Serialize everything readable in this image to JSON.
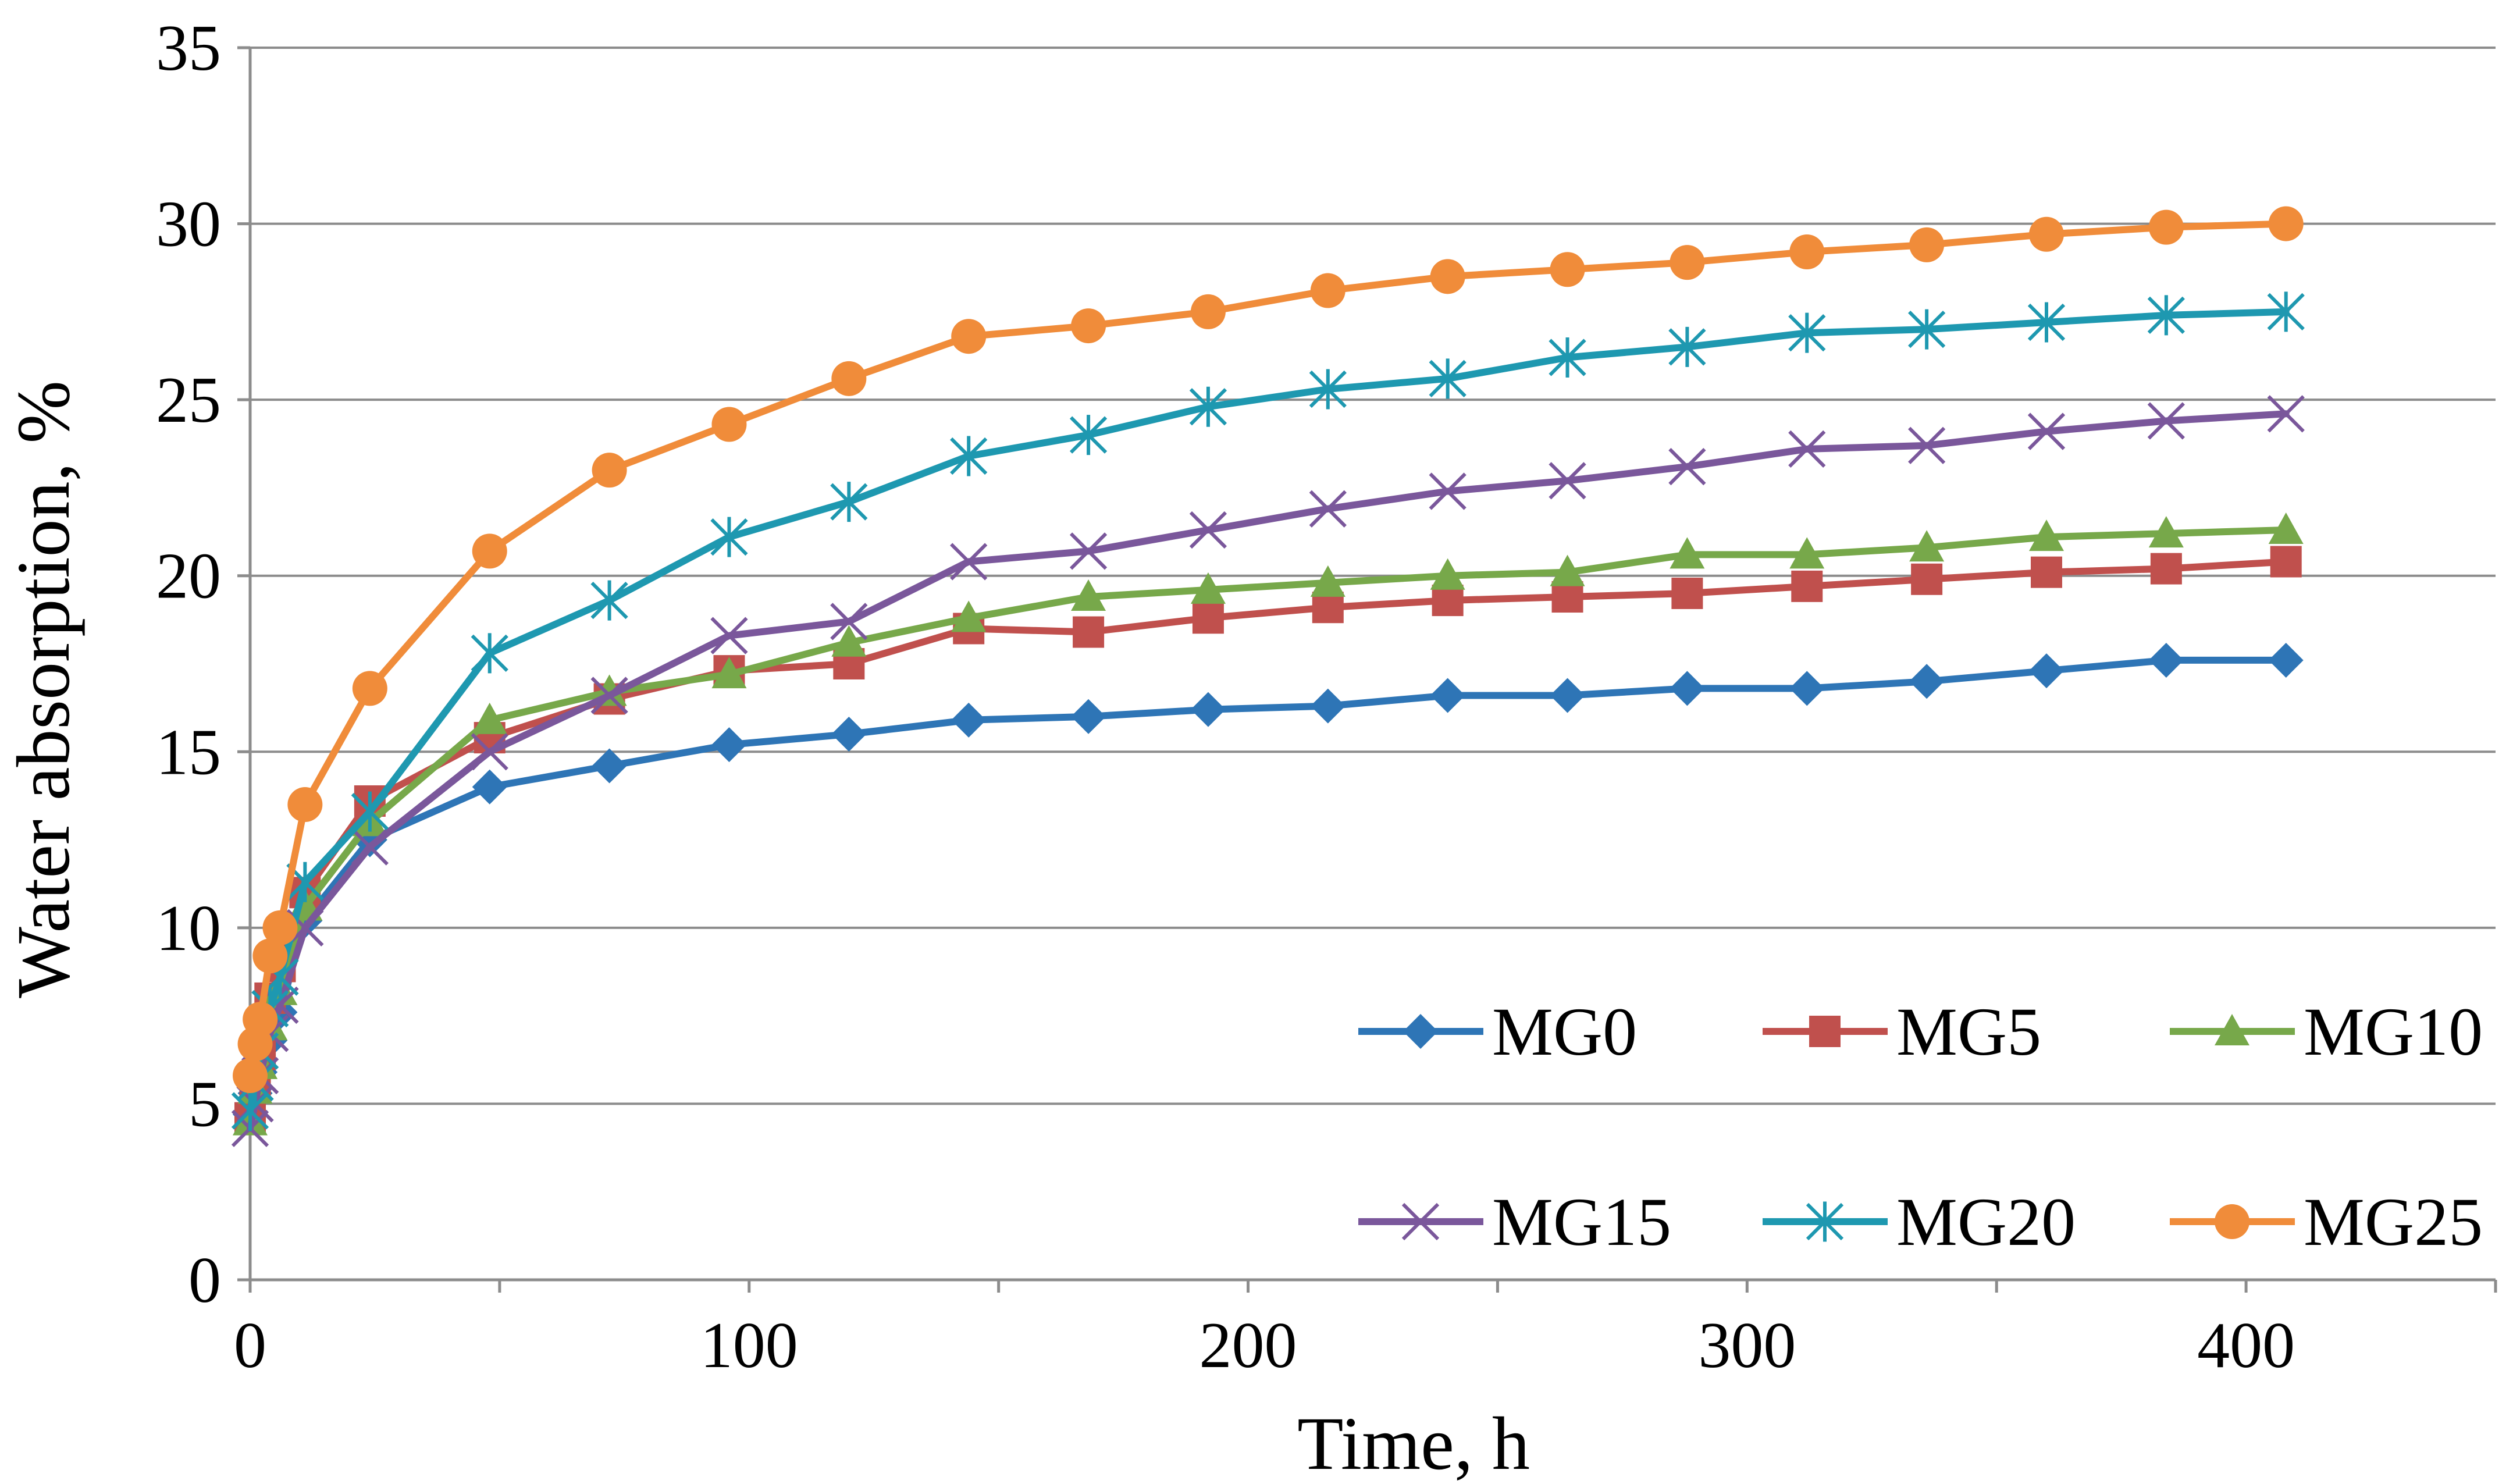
{
  "chart_data": {
    "type": "line",
    "title": "",
    "xlabel": "Time, h",
    "ylabel": "Water absorption, %",
    "xlim": [
      0,
      450
    ],
    "ylim": [
      0,
      35
    ],
    "xticks": [
      0,
      100,
      200,
      300,
      400
    ],
    "yticks": [
      0,
      5,
      10,
      15,
      20,
      25,
      30,
      35
    ],
    "xtick_labels": [
      "0",
      "100",
      "200",
      "300",
      "400"
    ],
    "ytick_labels": [
      "0",
      "5",
      "10",
      "15",
      "20",
      "25",
      "30",
      "35"
    ],
    "grid": "horizontal",
    "legend_position": "lower-right",
    "x": [
      0,
      1,
      2,
      4,
      6,
      11,
      24,
      48,
      72,
      96,
      120,
      144,
      168,
      192,
      216,
      240,
      264,
      288,
      312,
      336,
      360,
      384,
      408
    ],
    "series": [
      {
        "name": "MG0",
        "color": "#2E75B6",
        "marker": "diamond",
        "values": [
          4.7,
          5.3,
          5.9,
          6.8,
          7.6,
          10.2,
          12.5,
          14.0,
          14.6,
          15.2,
          15.5,
          15.9,
          16.0,
          16.2,
          16.3,
          16.6,
          16.6,
          16.8,
          16.8,
          17.0,
          17.3,
          17.6,
          17.6
        ]
      },
      {
        "name": "MG5",
        "color": "#C0504D",
        "marker": "square",
        "values": [
          4.6,
          5.5,
          6.4,
          8.0,
          8.9,
          11.0,
          13.6,
          15.4,
          16.5,
          17.3,
          17.5,
          18.5,
          18.4,
          18.8,
          19.1,
          19.3,
          19.4,
          19.5,
          19.7,
          19.9,
          20.1,
          20.2,
          20.4
        ]
      },
      {
        "name": "MG10",
        "color": "#77A84A",
        "marker": "triangle",
        "values": [
          4.5,
          5.4,
          6.1,
          7.2,
          8.2,
          10.6,
          13.0,
          15.9,
          16.7,
          17.2,
          18.1,
          18.8,
          19.4,
          19.6,
          19.8,
          20.0,
          20.1,
          20.6,
          20.6,
          20.8,
          21.1,
          21.2,
          21.3
        ]
      },
      {
        "name": "MG15",
        "color": "#7A579B",
        "marker": "x",
        "values": [
          4.3,
          5.0,
          5.8,
          7.0,
          7.8,
          10.0,
          12.3,
          15.0,
          16.6,
          18.3,
          18.7,
          20.4,
          20.7,
          21.3,
          21.9,
          22.4,
          22.7,
          23.1,
          23.6,
          23.7,
          24.1,
          24.4,
          24.6
        ]
      },
      {
        "name": "MG20",
        "color": "#1E98B0",
        "marker": "star",
        "values": [
          4.8,
          5.6,
          6.5,
          7.7,
          8.6,
          11.3,
          13.3,
          17.8,
          19.3,
          21.1,
          22.1,
          23.4,
          24.0,
          24.8,
          25.3,
          25.6,
          26.2,
          26.5,
          26.9,
          27.0,
          27.2,
          27.4,
          27.5
        ]
      },
      {
        "name": "MG25",
        "color": "#F08C3A",
        "marker": "circle",
        "values": [
          5.8,
          6.7,
          7.4,
          9.2,
          10.0,
          13.5,
          16.8,
          20.7,
          23.0,
          24.3,
          25.6,
          26.8,
          27.1,
          27.5,
          28.1,
          28.5,
          28.7,
          28.9,
          29.2,
          29.4,
          29.7,
          29.9,
          30.0
        ]
      }
    ]
  }
}
